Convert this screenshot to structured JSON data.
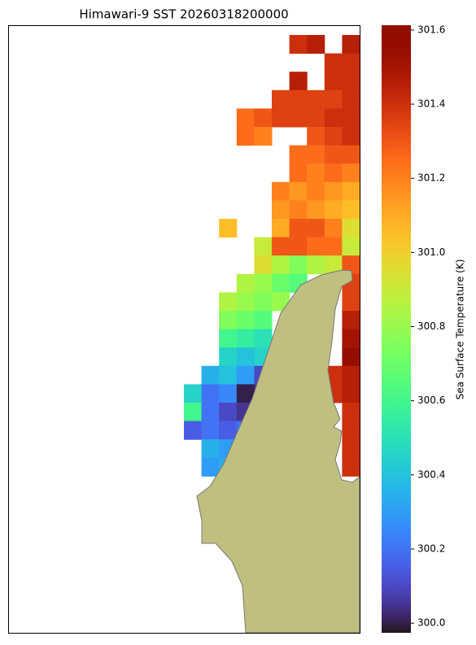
{
  "chart_data": {
    "type": "heatmap",
    "title": "Himawari-9 SST 20260318200000",
    "colorbar_label": "Sea Surface Temperature (K)",
    "colormap": "turbo",
    "clim": [
      299.974,
      301.613
    ],
    "cticks": [
      {
        "value": 300.0,
        "label": "300.0"
      },
      300.2,
      300.4,
      300.6,
      300.8,
      {
        "value": 301.0,
        "label": "301.0"
      },
      301.2,
      301.4,
      301.6
    ],
    "cells": [
      [
        null,
        null,
        null,
        null,
        null,
        null,
        301.4,
        301.45,
        null,
        301.45
      ],
      [
        null,
        null,
        null,
        null,
        null,
        null,
        null,
        null,
        301.4,
        301.4
      ],
      [
        null,
        null,
        null,
        null,
        null,
        null,
        301.45,
        null,
        301.4,
        301.4
      ],
      [
        null,
        null,
        null,
        null,
        null,
        301.35,
        301.35,
        301.35,
        301.35,
        301.4
      ],
      [
        null,
        null,
        null,
        301.25,
        301.3,
        301.35,
        301.35,
        301.35,
        301.4,
        301.4
      ],
      [
        null,
        null,
        null,
        301.25,
        301.2,
        null,
        null,
        301.3,
        301.35,
        301.4
      ],
      [
        null,
        null,
        null,
        null,
        null,
        null,
        301.25,
        301.25,
        301.3,
        301.3
      ],
      [
        null,
        null,
        null,
        null,
        null,
        null,
        301.25,
        301.2,
        301.25,
        301.2
      ],
      [
        null,
        null,
        null,
        null,
        null,
        301.2,
        301.15,
        301.2,
        301.15,
        301.1
      ],
      [
        null,
        null,
        null,
        null,
        null,
        301.15,
        301.2,
        301.15,
        301.1,
        301.05
      ],
      [
        null,
        null,
        301.05,
        null,
        null,
        301.1,
        301.3,
        301.3,
        301.2,
        300.95
      ],
      [
        null,
        null,
        null,
        null,
        300.9,
        301.3,
        301.3,
        301.25,
        301.25,
        300.9
      ],
      [
        null,
        null,
        null,
        null,
        300.95,
        300.85,
        300.75,
        300.85,
        300.9,
        301.3
      ],
      [
        null,
        null,
        null,
        300.85,
        300.8,
        300.7,
        300.65,
        null,
        null,
        301.35
      ],
      [
        null,
        null,
        300.85,
        300.8,
        300.75,
        300.8,
        null,
        null,
        null,
        301.35
      ],
      [
        null,
        null,
        300.75,
        300.7,
        300.65,
        null,
        null,
        null,
        null,
        301.45
      ],
      [
        null,
        null,
        300.6,
        300.55,
        300.5,
        null,
        null,
        null,
        null,
        301.5
      ],
      [
        null,
        null,
        300.45,
        300.4,
        300.45,
        null,
        null,
        null,
        null,
        301.55
      ],
      [
        null,
        300.35,
        300.4,
        300.3,
        300.1,
        null,
        null,
        null,
        301.4,
        301.45
      ],
      [
        300.45,
        300.2,
        300.25,
        300.0,
        300.05,
        null,
        null,
        null,
        301.4,
        301.45
      ],
      [
        300.6,
        300.2,
        300.1,
        300.05,
        300.1,
        null,
        null,
        null,
        null,
        301.4
      ],
      [
        300.15,
        300.2,
        300.15,
        300.2,
        null,
        null,
        null,
        null,
        null,
        301.4
      ],
      [
        null,
        300.35,
        300.3,
        null,
        null,
        null,
        null,
        null,
        null,
        301.4
      ],
      [
        null,
        300.3,
        300.35,
        null,
        null,
        null,
        null,
        null,
        null,
        301.4
      ]
    ]
  }
}
